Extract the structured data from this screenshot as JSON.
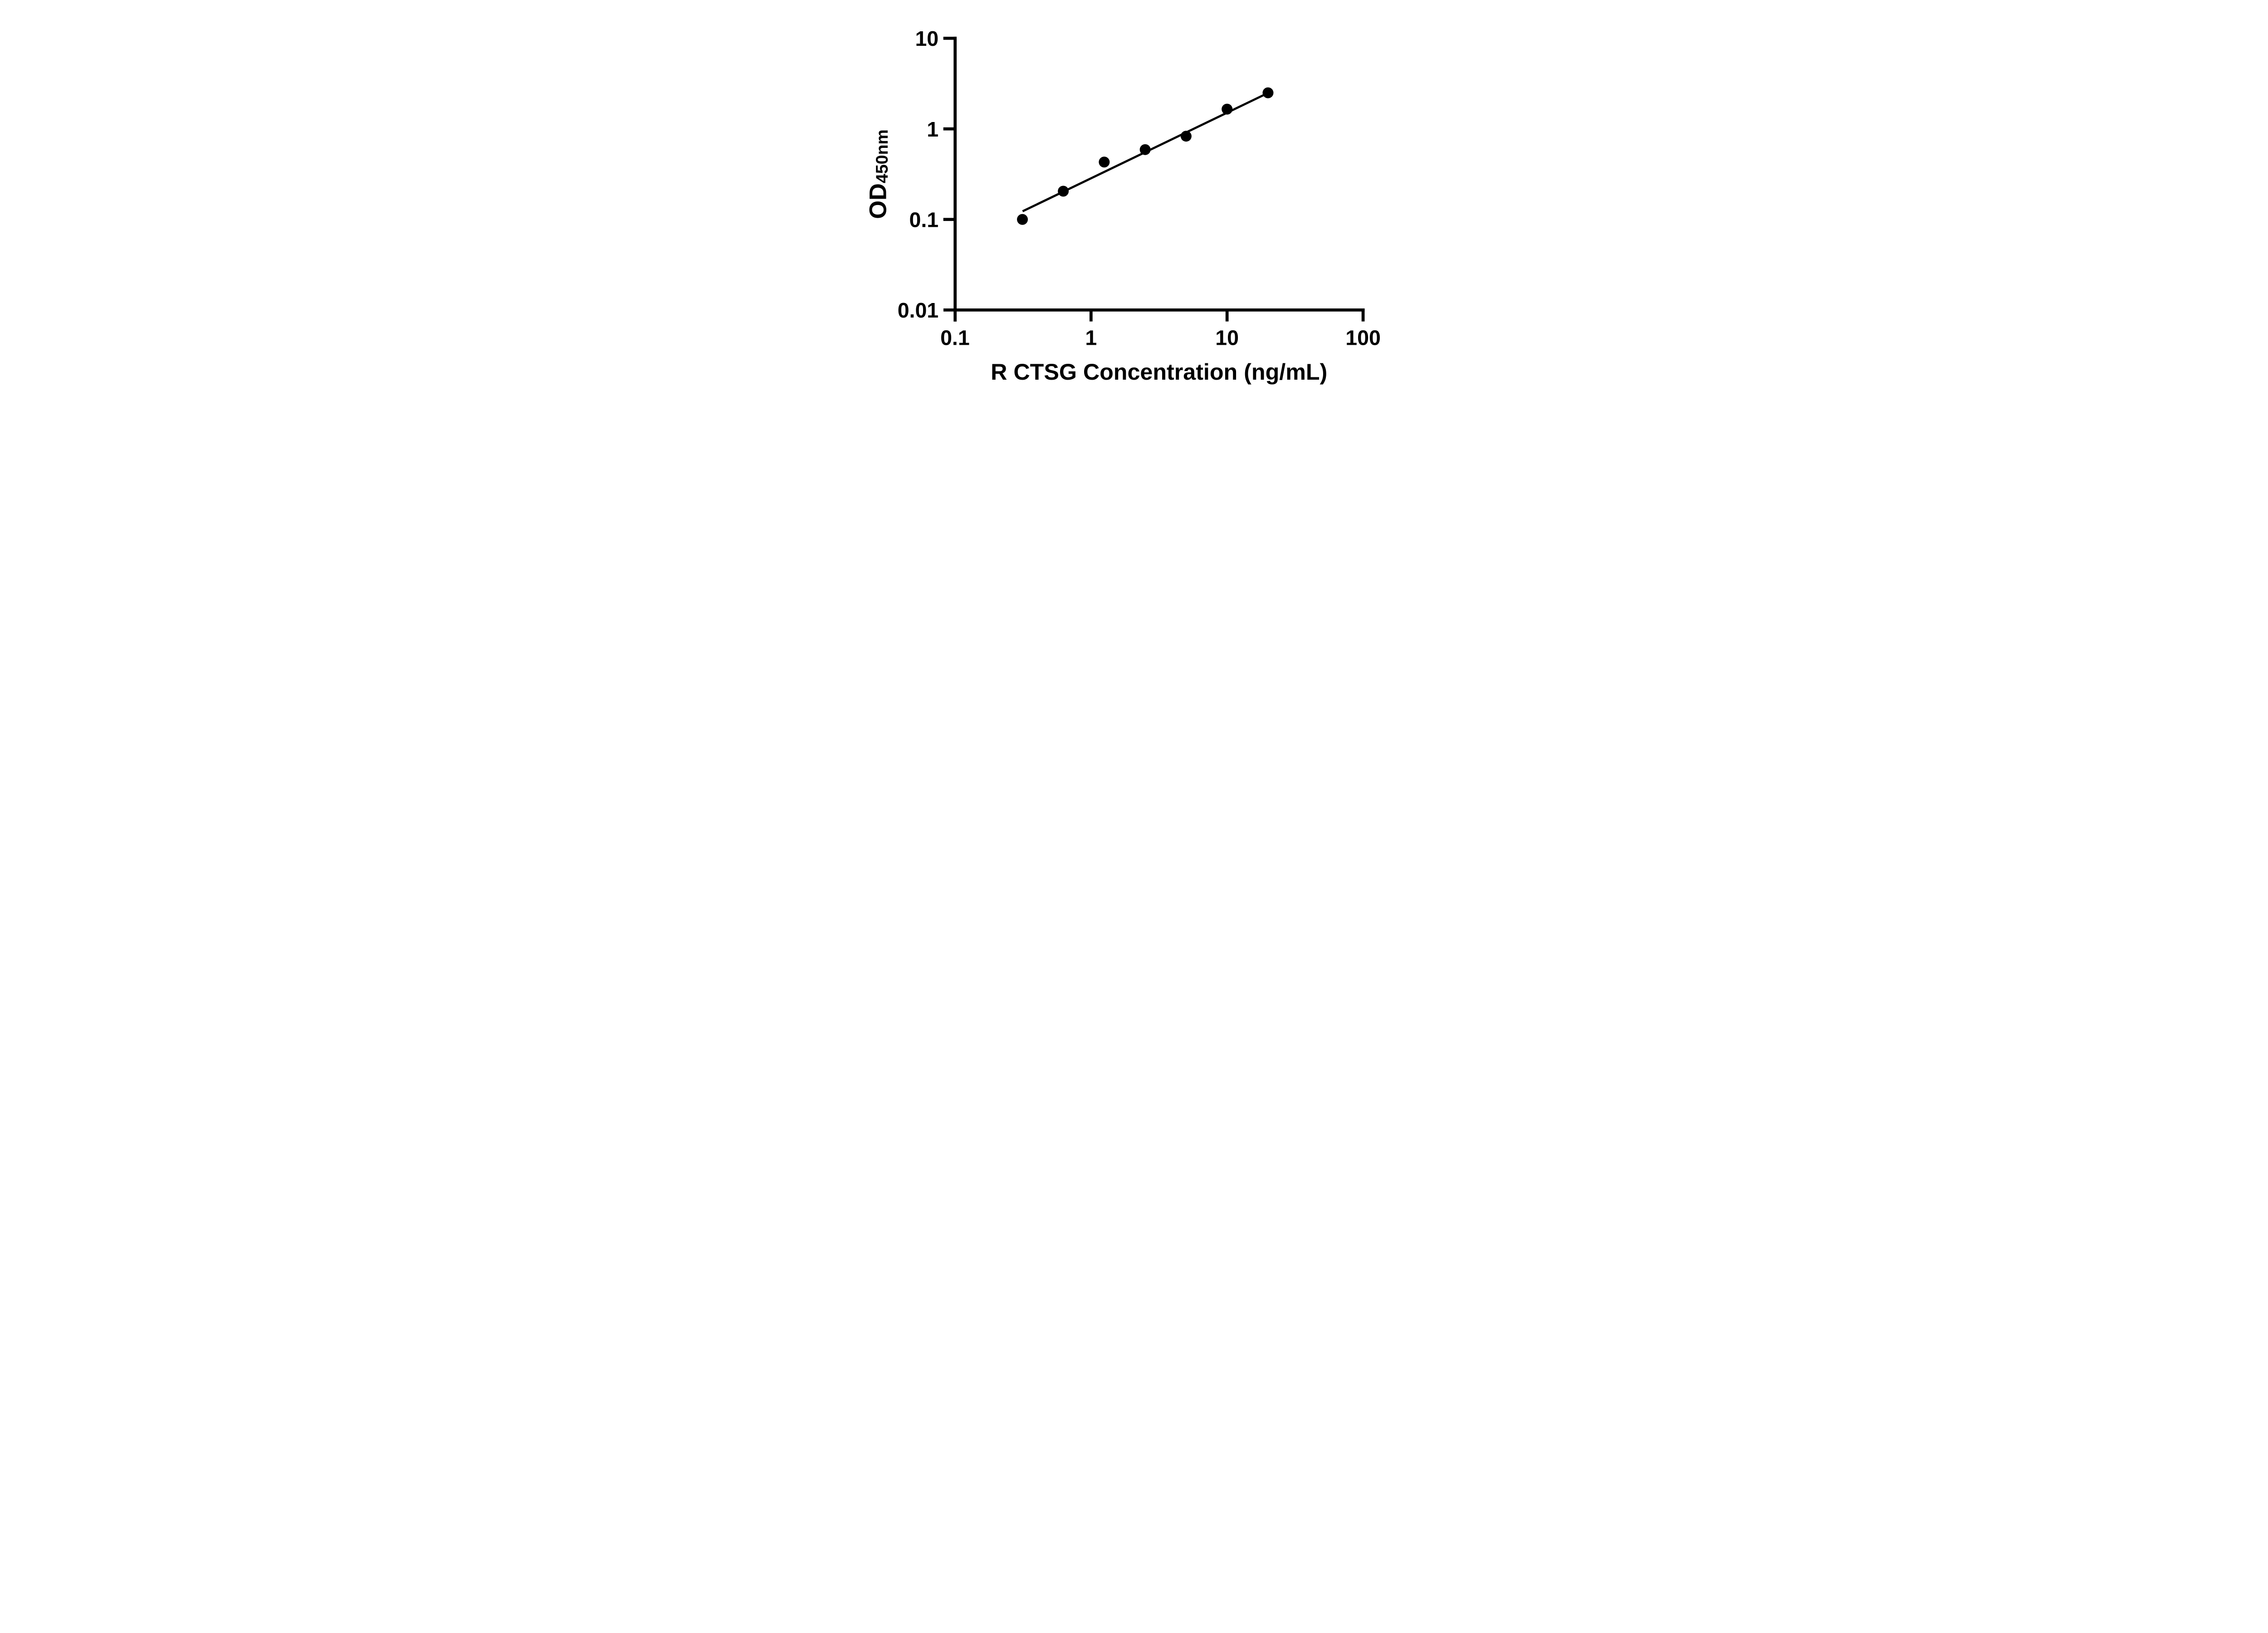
{
  "figure": {
    "background_color": "#ffffff",
    "ink_color": "#000000",
    "description": "ELISA standard curve, log-log scatter plot with fitted line"
  },
  "chart_data": {
    "type": "scatter",
    "title": "",
    "xlabel": "R CTSG Concentration (ng/mL)",
    "ylabel_main": "OD",
    "ylabel_subscript": "450nm",
    "x_scale": "log",
    "y_scale": "log",
    "xlim": [
      0.1,
      100
    ],
    "ylim": [
      0.01,
      10
    ],
    "x_ticks": [
      0.1,
      1,
      10,
      100
    ],
    "x_tick_labels": [
      "0.1",
      "1",
      "10",
      "100"
    ],
    "y_ticks": [
      0.01,
      0.1,
      1,
      10
    ],
    "y_tick_labels": [
      "0.01",
      "0.1",
      "1",
      "10"
    ],
    "grid": false,
    "legend_position": "none",
    "marker_color": "#000000",
    "line_color": "#000000",
    "series": [
      {
        "name": "standard-curve-points",
        "marker": "circle",
        "points": [
          {
            "x": 0.313,
            "y": 0.1
          },
          {
            "x": 0.625,
            "y": 0.205
          },
          {
            "x": 1.25,
            "y": 0.43
          },
          {
            "x": 2.5,
            "y": 0.59
          },
          {
            "x": 5,
            "y": 0.83
          },
          {
            "x": 10,
            "y": 1.65
          },
          {
            "x": 20,
            "y": 2.5
          }
        ]
      }
    ],
    "trend_line": {
      "x1": 0.314,
      "y1": 0.123,
      "x2": 20,
      "y2": 2.49
    }
  }
}
